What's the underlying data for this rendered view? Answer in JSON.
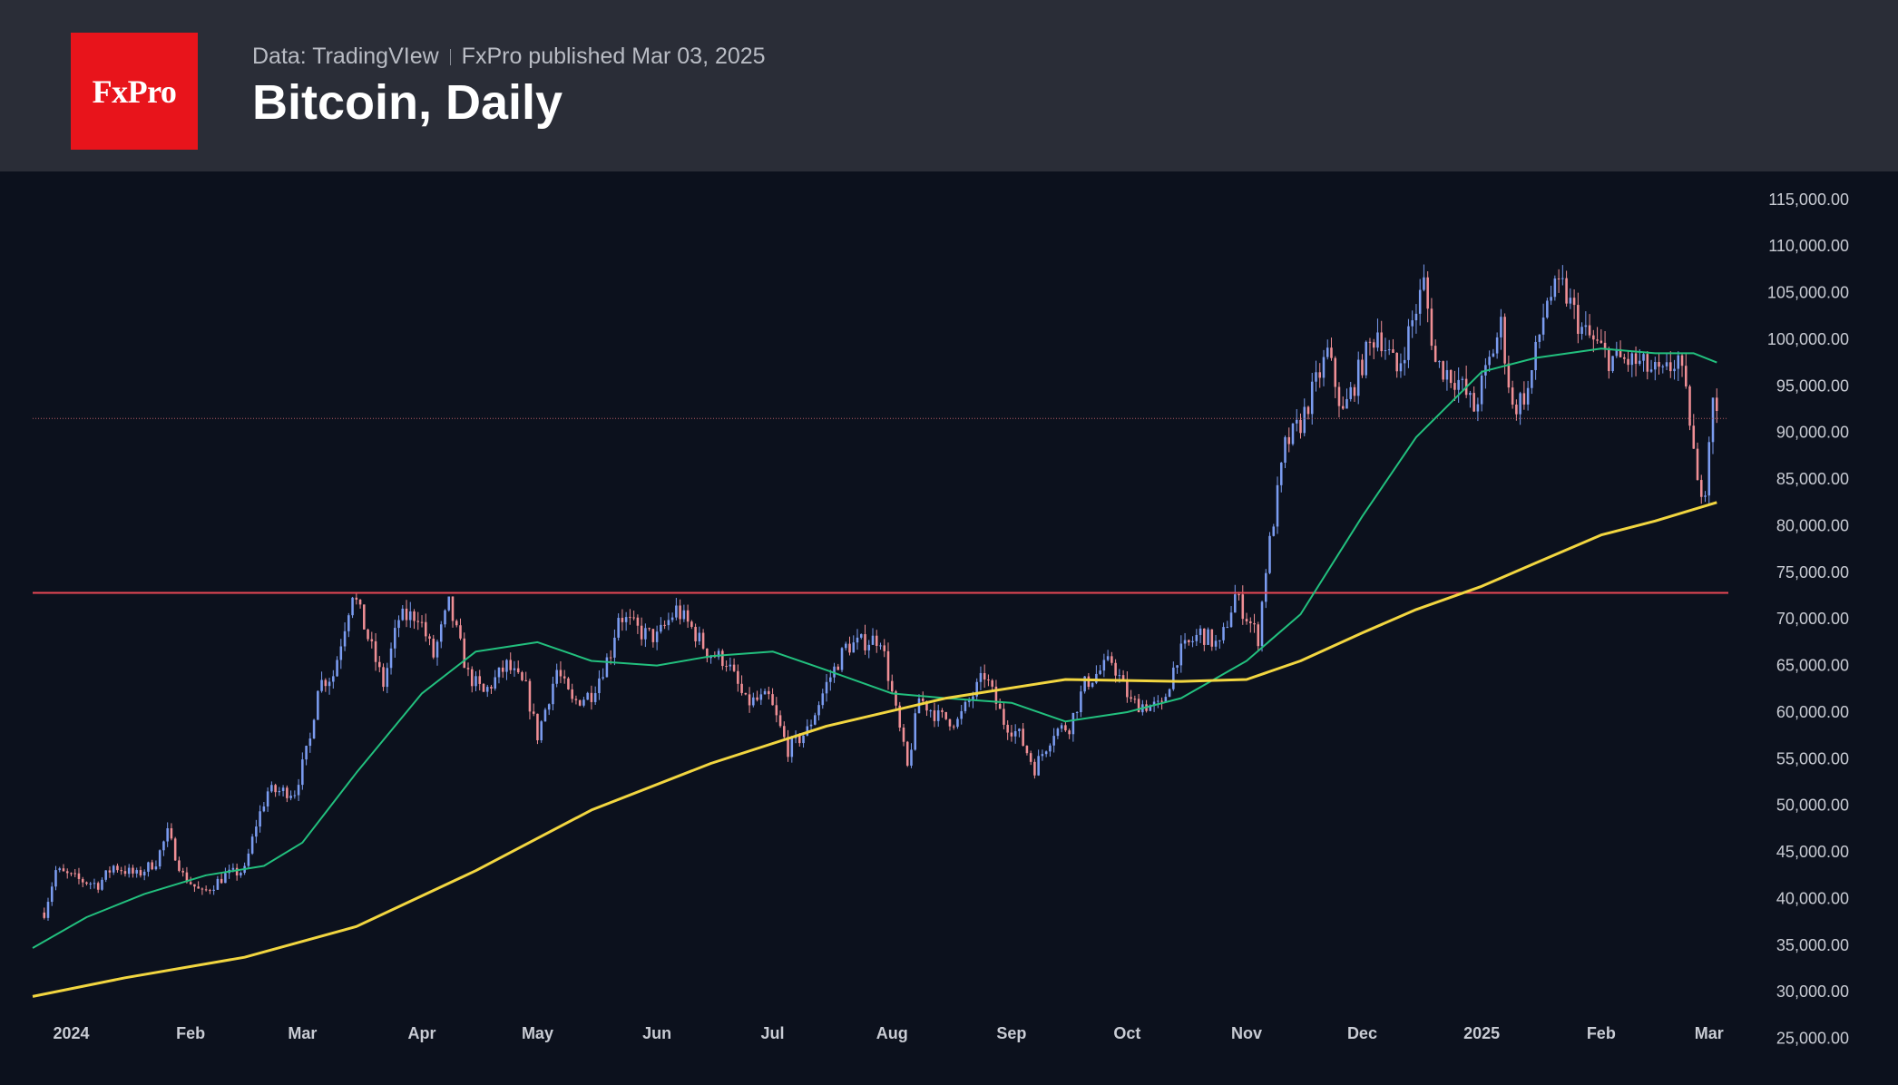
{
  "header": {
    "logo_text": "FxPro",
    "source": "Data: TradingVIew",
    "publisher": "FxPro published Mar 03, 2025",
    "title": "Bitcoin, Daily"
  },
  "colors": {
    "up_candle": "#7b9cf0",
    "down_candle": "#f08f95",
    "ma_fast": "#22c07e",
    "ma_slow": "#f2d640",
    "resistance": "#e84855",
    "last_price_line": "#b35a63"
  },
  "chart_data": {
    "type": "candlestick",
    "x_range": [
      "2023-12-22",
      "2025-03-06"
    ],
    "ylim": [
      20000,
      118000
    ],
    "y_ticks": [
      25000,
      30000,
      35000,
      40000,
      45000,
      50000,
      55000,
      60000,
      65000,
      70000,
      75000,
      80000,
      85000,
      90000,
      95000,
      100000,
      105000,
      110000,
      115000
    ],
    "y_tick_labels": [
      "25,000.00",
      "30,000.00",
      "35,000.00",
      "40,000.00",
      "45,000.00",
      "50,000.00",
      "55,000.00",
      "60,000.00",
      "65,000.00",
      "70,000.00",
      "75,000.00",
      "80,000.00",
      "85,000.00",
      "90,000.00",
      "95,000.00",
      "100,000.00",
      "105,000.00",
      "110,000.00",
      "115,000.00"
    ],
    "x_ticks": [
      {
        "date": "2024-01-01",
        "label": "2024"
      },
      {
        "date": "2024-02-01",
        "label": "Feb"
      },
      {
        "date": "2024-03-01",
        "label": "Mar"
      },
      {
        "date": "2024-04-01",
        "label": "Apr"
      },
      {
        "date": "2024-05-01",
        "label": "May"
      },
      {
        "date": "2024-06-01",
        "label": "Jun"
      },
      {
        "date": "2024-07-01",
        "label": "Jul"
      },
      {
        "date": "2024-08-01",
        "label": "Aug"
      },
      {
        "date": "2024-09-01",
        "label": "Sep"
      },
      {
        "date": "2024-10-01",
        "label": "Oct"
      },
      {
        "date": "2024-11-01",
        "label": "Nov"
      },
      {
        "date": "2024-12-01",
        "label": "Dec"
      },
      {
        "date": "2025-01-01",
        "label": "2025"
      },
      {
        "date": "2025-02-01",
        "label": "Feb"
      },
      {
        "date": "2025-03-01",
        "label": "Mar"
      }
    ],
    "resistance_level": 72800,
    "last_price_level": 91500,
    "close_keypoints": [
      {
        "date": "2023-12-25",
        "value": 38500
      },
      {
        "date": "2023-12-28",
        "value": 43000
      },
      {
        "date": "2024-01-03",
        "value": 42000
      },
      {
        "date": "2024-01-08",
        "value": 41500
      },
      {
        "date": "2024-01-12",
        "value": 43500
      },
      {
        "date": "2024-01-18",
        "value": 42500
      },
      {
        "date": "2024-01-23",
        "value": 44000
      },
      {
        "date": "2024-01-26",
        "value": 47000
      },
      {
        "date": "2024-01-30",
        "value": 42500
      },
      {
        "date": "2024-02-04",
        "value": 40500
      },
      {
        "date": "2024-02-10",
        "value": 42500
      },
      {
        "date": "2024-02-15",
        "value": 43000
      },
      {
        "date": "2024-02-18",
        "value": 48000
      },
      {
        "date": "2024-02-21",
        "value": 51500
      },
      {
        "date": "2024-02-28",
        "value": 51500
      },
      {
        "date": "2024-03-03",
        "value": 57000
      },
      {
        "date": "2024-03-05",
        "value": 63000
      },
      {
        "date": "2024-03-09",
        "value": 64000
      },
      {
        "date": "2024-03-14",
        "value": 73000
      },
      {
        "date": "2024-03-18",
        "value": 68000
      },
      {
        "date": "2024-03-22",
        "value": 63000
      },
      {
        "date": "2024-03-26",
        "value": 70000
      },
      {
        "date": "2024-03-31",
        "value": 70500
      },
      {
        "date": "2024-04-04",
        "value": 66000
      },
      {
        "date": "2024-04-08",
        "value": 71500
      },
      {
        "date": "2024-04-13",
        "value": 64000
      },
      {
        "date": "2024-04-17",
        "value": 62000
      },
      {
        "date": "2024-04-23",
        "value": 65000
      },
      {
        "date": "2024-04-28",
        "value": 62500
      },
      {
        "date": "2024-05-01",
        "value": 57500
      },
      {
        "date": "2024-05-06",
        "value": 64500
      },
      {
        "date": "2024-05-10",
        "value": 61000
      },
      {
        "date": "2024-05-15",
        "value": 62000
      },
      {
        "date": "2024-05-20",
        "value": 66500
      },
      {
        "date": "2024-05-22",
        "value": 70500
      },
      {
        "date": "2024-05-28",
        "value": 68500
      },
      {
        "date": "2024-06-01",
        "value": 68000
      },
      {
        "date": "2024-06-06",
        "value": 71000
      },
      {
        "date": "2024-06-10",
        "value": 69000
      },
      {
        "date": "2024-06-14",
        "value": 66500
      },
      {
        "date": "2024-06-19",
        "value": 65500
      },
      {
        "date": "2024-06-24",
        "value": 61000
      },
      {
        "date": "2024-06-30",
        "value": 61500
      },
      {
        "date": "2024-07-05",
        "value": 56000
      },
      {
        "date": "2024-07-10",
        "value": 58000
      },
      {
        "date": "2024-07-15",
        "value": 63000
      },
      {
        "date": "2024-07-20",
        "value": 67000
      },
      {
        "date": "2024-07-29",
        "value": 68000
      },
      {
        "date": "2024-08-02",
        "value": 60000
      },
      {
        "date": "2024-08-05",
        "value": 54000
      },
      {
        "date": "2024-08-08",
        "value": 61500
      },
      {
        "date": "2024-08-13",
        "value": 59500
      },
      {
        "date": "2024-08-18",
        "value": 59000
      },
      {
        "date": "2024-08-25",
        "value": 64000
      },
      {
        "date": "2024-08-30",
        "value": 59000
      },
      {
        "date": "2024-09-03",
        "value": 57500
      },
      {
        "date": "2024-09-07",
        "value": 54000
      },
      {
        "date": "2024-09-12",
        "value": 58000
      },
      {
        "date": "2024-09-16",
        "value": 58500
      },
      {
        "date": "2024-09-20",
        "value": 63000
      },
      {
        "date": "2024-09-27",
        "value": 65500
      },
      {
        "date": "2024-10-02",
        "value": 61000
      },
      {
        "date": "2024-10-10",
        "value": 60500
      },
      {
        "date": "2024-10-14",
        "value": 66000
      },
      {
        "date": "2024-10-20",
        "value": 68500
      },
      {
        "date": "2024-10-25",
        "value": 67000
      },
      {
        "date": "2024-10-29",
        "value": 72500
      },
      {
        "date": "2024-11-04",
        "value": 68000
      },
      {
        "date": "2024-11-06",
        "value": 75500
      },
      {
        "date": "2024-11-11",
        "value": 88500
      },
      {
        "date": "2024-11-15",
        "value": 91000
      },
      {
        "date": "2024-11-22",
        "value": 98500
      },
      {
        "date": "2024-11-26",
        "value": 92000
      },
      {
        "date": "2024-12-01",
        "value": 97500
      },
      {
        "date": "2024-12-05",
        "value": 101000
      },
      {
        "date": "2024-12-10",
        "value": 96500
      },
      {
        "date": "2024-12-17",
        "value": 106000
      },
      {
        "date": "2024-12-20",
        "value": 97500
      },
      {
        "date": "2024-12-26",
        "value": 95500
      },
      {
        "date": "2024-12-30",
        "value": 92500
      },
      {
        "date": "2025-01-06",
        "value": 101500
      },
      {
        "date": "2025-01-09",
        "value": 92500
      },
      {
        "date": "2025-01-13",
        "value": 94500
      },
      {
        "date": "2025-01-18",
        "value": 104500
      },
      {
        "date": "2025-01-22",
        "value": 105500
      },
      {
        "date": "2025-01-27",
        "value": 101000
      },
      {
        "date": "2025-02-03",
        "value": 98000
      },
      {
        "date": "2025-02-10",
        "value": 97500
      },
      {
        "date": "2025-02-17",
        "value": 96000
      },
      {
        "date": "2025-02-21",
        "value": 98000
      },
      {
        "date": "2025-02-24",
        "value": 91500
      },
      {
        "date": "2025-02-26",
        "value": 84000
      },
      {
        "date": "2025-02-28",
        "value": 84500
      },
      {
        "date": "2025-03-02",
        "value": 94500
      },
      {
        "date": "2025-03-03",
        "value": 91500
      }
    ],
    "series": [
      {
        "kind": "moving-average-fast",
        "points": [
          {
            "date": "2023-12-22",
            "value": 34700
          },
          {
            "date": "2024-01-05",
            "value": 38000
          },
          {
            "date": "2024-01-20",
            "value": 40500
          },
          {
            "date": "2024-02-05",
            "value": 42500
          },
          {
            "date": "2024-02-20",
            "value": 43500
          },
          {
            "date": "2024-03-01",
            "value": 46000
          },
          {
            "date": "2024-03-15",
            "value": 53500
          },
          {
            "date": "2024-04-01",
            "value": 62000
          },
          {
            "date": "2024-04-15",
            "value": 66500
          },
          {
            "date": "2024-05-01",
            "value": 67500
          },
          {
            "date": "2024-05-15",
            "value": 65500
          },
          {
            "date": "2024-06-01",
            "value": 65000
          },
          {
            "date": "2024-06-15",
            "value": 66000
          },
          {
            "date": "2024-07-01",
            "value": 66500
          },
          {
            "date": "2024-07-15",
            "value": 64500
          },
          {
            "date": "2024-08-01",
            "value": 62000
          },
          {
            "date": "2024-08-15",
            "value": 61500
          },
          {
            "date": "2024-09-01",
            "value": 61000
          },
          {
            "date": "2024-09-15",
            "value": 59000
          },
          {
            "date": "2024-10-01",
            "value": 60000
          },
          {
            "date": "2024-10-15",
            "value": 61500
          },
          {
            "date": "2024-11-01",
            "value": 65500
          },
          {
            "date": "2024-11-15",
            "value": 70500
          },
          {
            "date": "2024-12-01",
            "value": 81000
          },
          {
            "date": "2024-12-15",
            "value": 89500
          },
          {
            "date": "2025-01-01",
            "value": 96500
          },
          {
            "date": "2025-01-15",
            "value": 98000
          },
          {
            "date": "2025-02-01",
            "value": 99000
          },
          {
            "date": "2025-02-15",
            "value": 98500
          },
          {
            "date": "2025-02-25",
            "value": 98500
          },
          {
            "date": "2025-03-03",
            "value": 97500
          }
        ]
      },
      {
        "kind": "moving-average-slow",
        "points": [
          {
            "date": "2023-12-22",
            "value": 29500
          },
          {
            "date": "2024-01-15",
            "value": 31500
          },
          {
            "date": "2024-02-15",
            "value": 33700
          },
          {
            "date": "2024-03-15",
            "value": 37000
          },
          {
            "date": "2024-04-15",
            "value": 43000
          },
          {
            "date": "2024-05-15",
            "value": 49500
          },
          {
            "date": "2024-06-15",
            "value": 54500
          },
          {
            "date": "2024-07-15",
            "value": 58500
          },
          {
            "date": "2024-08-15",
            "value": 61500
          },
          {
            "date": "2024-09-15",
            "value": 63500
          },
          {
            "date": "2024-10-15",
            "value": 63300
          },
          {
            "date": "2024-11-01",
            "value": 63500
          },
          {
            "date": "2024-11-15",
            "value": 65500
          },
          {
            "date": "2024-12-01",
            "value": 68500
          },
          {
            "date": "2024-12-15",
            "value": 71000
          },
          {
            "date": "2025-01-01",
            "value": 73500
          },
          {
            "date": "2025-01-15",
            "value": 76000
          },
          {
            "date": "2025-02-01",
            "value": 79000
          },
          {
            "date": "2025-02-15",
            "value": 80500
          },
          {
            "date": "2025-03-03",
            "value": 82500
          }
        ]
      }
    ]
  }
}
